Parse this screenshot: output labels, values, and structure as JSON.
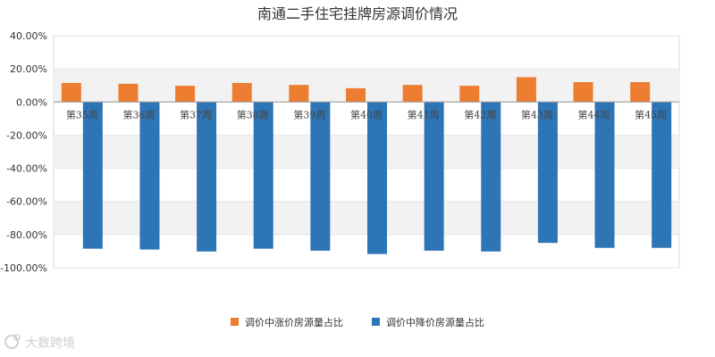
{
  "chart_data": {
    "type": "bar",
    "title": "南通二手住宅挂牌房源调价情况",
    "categories": [
      "第35周",
      "第36周",
      "第37周",
      "第38周",
      "第39周",
      "第40周",
      "第41周",
      "第42周",
      "第43周",
      "第44周",
      "第45周"
    ],
    "series": [
      {
        "name": "调价中涨价房源量占比",
        "color": "#ED7D31",
        "values": [
          11.5,
          11.0,
          9.8,
          11.5,
          10.3,
          8.3,
          10.3,
          9.8,
          15.0,
          12.0,
          12.0
        ]
      },
      {
        "name": "调价中降价房源量占比",
        "color": "#2E75B6",
        "values": [
          -88.5,
          -89.0,
          -90.2,
          -88.5,
          -89.7,
          -91.7,
          -89.7,
          -90.2,
          -85.0,
          -88.0,
          -88.0
        ]
      }
    ],
    "ylim": [
      -100,
      40
    ],
    "yticks": [
      40,
      20,
      0,
      -20,
      -40,
      -60,
      -80,
      -100
    ],
    "ytick_labels": [
      "40.00%",
      "20.00%",
      "0.00%",
      "-20.00%",
      "-40.00%",
      "-60.00%",
      "-80.00%",
      "-100.00%"
    ],
    "grid": true,
    "legend_position": "bottom"
  },
  "watermark": {
    "text": "大数跨境",
    "logo": "dashuju-logo-icon"
  }
}
